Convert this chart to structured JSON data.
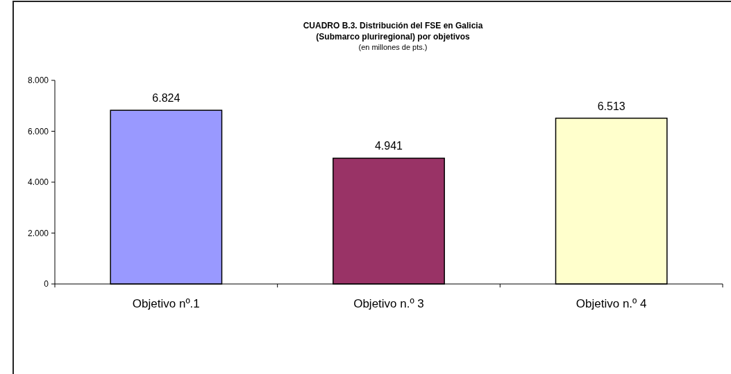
{
  "chart_data": {
    "type": "bar",
    "title": "CUADRO B.3. Distribución del FSE en Galicia\n(Submarco pluriregional) por objetivos",
    "subtitle": "(en millones de pts.)",
    "categories": [
      "Objetivo nº.1",
      "Objetivo n.º 3",
      "Objetivo n.º 4"
    ],
    "values": [
      6824,
      4941,
      6513
    ],
    "colors": [
      "#9999ff",
      "#993366",
      "#ffffcc"
    ],
    "value_labels": [
      "6.824",
      "4.941",
      "6.513"
    ],
    "ylim": [
      0,
      8000
    ],
    "yticks": [
      {
        "value": 0,
        "label": "0"
      },
      {
        "value": 2000,
        "label": "2.000"
      },
      {
        "value": 4000,
        "label": "4.000"
      },
      {
        "value": 6000,
        "label": "6.000"
      },
      {
        "value": 8000,
        "label": "8.000"
      }
    ]
  }
}
